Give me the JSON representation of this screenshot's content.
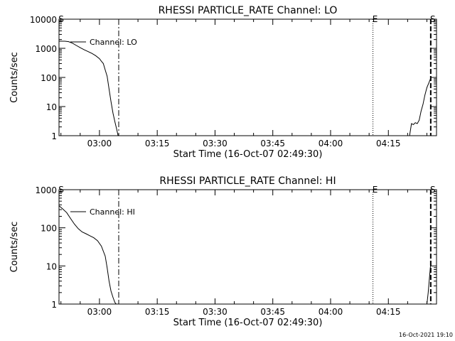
{
  "footer": {
    "timestamp": "16-Oct-2021 19:10"
  },
  "chart_data": [
    {
      "type": "line",
      "title": "RHESSI PARTICLE_RATE Channel: LO",
      "xlabel": "Start Time (16-Oct-07 02:49:30)",
      "ylabel": "Counts/sec",
      "y_scale": "log",
      "ylim": [
        1,
        10000
      ],
      "y_ticks": [
        1,
        10,
        100,
        1000,
        10000
      ],
      "y_tick_labels": [
        "1",
        "10",
        "100",
        "1000",
        "10000"
      ],
      "xlim": [
        "02:49:30",
        "04:27:30"
      ],
      "x_ticks": [
        "03:00",
        "03:15",
        "03:30",
        "03:45",
        "04:00",
        "04:15"
      ],
      "grid": false,
      "legend": "top-left",
      "series": [
        {
          "name": "Channel: LO",
          "segments": [
            {
              "x": [
                "02:49:30",
                "02:51:00",
                "02:52:00",
                "02:53:00",
                "02:54:00",
                "02:55:00",
                "02:56:00",
                "02:57:00",
                "02:58:00",
                "02:59:00",
                "03:00:00",
                "03:00:30",
                "03:01:00",
                "03:01:30",
                "03:02:00",
                "03:02:30",
                "03:03:00",
                "03:03:30",
                "03:04:00",
                "03:04:30",
                "03:04:50"
              ],
              "y": [
                1750,
                1750,
                1700,
                1500,
                1250,
                1050,
                900,
                780,
                670,
                560,
                440,
                360,
                300,
                180,
                110,
                40,
                15,
                6,
                3,
                1.6,
                1
              ]
            },
            {
              "x": [
                "04:20:30",
                "04:21:00",
                "04:21:30",
                "04:22:00",
                "04:22:30",
                "04:23:00",
                "04:23:30",
                "04:24:00",
                "04:24:30",
                "04:25:00",
                "04:25:30",
                "04:26:00"
              ],
              "y": [
                1,
                2.6,
                2.4,
                2.8,
                2.6,
                3.4,
                7,
                12,
                25,
                45,
                65,
                95
              ]
            }
          ]
        }
      ],
      "markers": [
        {
          "label": "S",
          "x": "02:49:30",
          "style": "solid"
        },
        {
          "label": "",
          "x": "03:05:00",
          "style": "dash-dot"
        },
        {
          "label": "E",
          "x": "04:11:00",
          "style": "dotted"
        },
        {
          "label": "S",
          "x": "04:26:00",
          "style": "dashed"
        }
      ]
    },
    {
      "type": "line",
      "title": "RHESSI PARTICLE_RATE Channel: HI",
      "xlabel": "Start Time (16-Oct-07 02:49:30)",
      "ylabel": "Counts/sec",
      "y_scale": "log",
      "ylim": [
        1,
        1000
      ],
      "y_ticks": [
        1,
        10,
        100,
        1000
      ],
      "y_tick_labels": [
        "1",
        "10",
        "100",
        "1000"
      ],
      "xlim": [
        "02:49:30",
        "04:27:30"
      ],
      "x_ticks": [
        "03:00",
        "03:15",
        "03:30",
        "03:45",
        "04:00",
        "04:15"
      ],
      "grid": false,
      "legend": "top-left",
      "series": [
        {
          "name": "Channel: HI",
          "segments": [
            {
              "x": [
                "02:49:30",
                "02:50:30",
                "02:51:30",
                "02:52:30",
                "02:53:30",
                "02:54:30",
                "02:55:30",
                "02:56:30",
                "02:57:30",
                "02:58:30",
                "02:59:30",
                "03:00:30",
                "03:01:30",
                "03:02:00",
                "03:02:30",
                "03:03:00",
                "03:03:30",
                "03:04:00",
                "03:04:20"
              ],
              "y": [
                380,
                310,
                250,
                175,
                125,
                95,
                78,
                70,
                62,
                55,
                46,
                33,
                18,
                9,
                4,
                2.2,
                1.5,
                1.1,
                1
              ]
            },
            {
              "x": [
                "04:25:00",
                "04:25:20",
                "04:25:40",
                "04:26:00"
              ],
              "y": [
                1,
                2,
                5,
                12
              ]
            }
          ]
        }
      ],
      "markers": [
        {
          "label": "S",
          "x": "02:49:30",
          "style": "solid"
        },
        {
          "label": "",
          "x": "03:05:00",
          "style": "dash-dot"
        },
        {
          "label": "E",
          "x": "04:11:00",
          "style": "dotted"
        },
        {
          "label": "S",
          "x": "04:26:00",
          "style": "dashed"
        }
      ]
    }
  ]
}
